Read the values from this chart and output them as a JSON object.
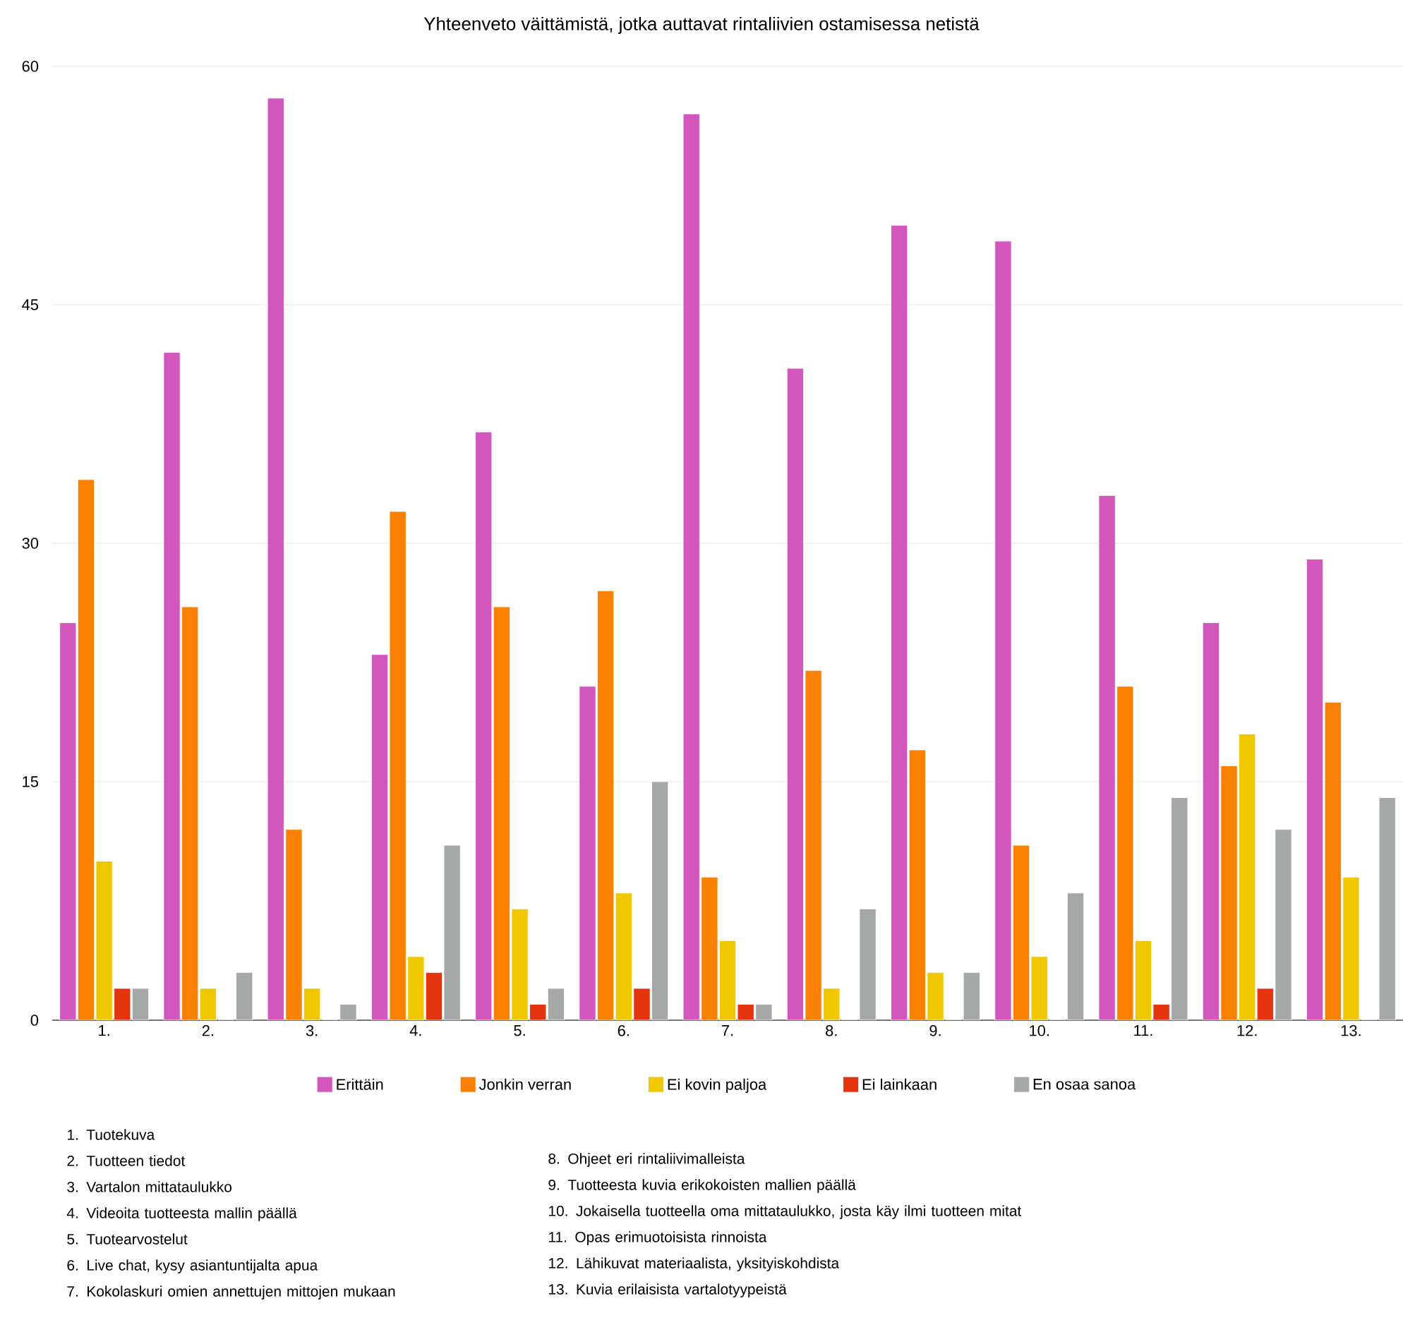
{
  "chart_data": {
    "type": "bar",
    "title": "Yhteenveto väittämistä, jotka auttavat rintaliivien ostamisessa netistä",
    "categories": [
      "1.",
      "2.",
      "3.",
      "4.",
      "5.",
      "6.",
      "7.",
      "8.",
      "9.",
      "10.",
      "11.",
      "12.",
      "13."
    ],
    "series": [
      {
        "name": "Erittäin",
        "color": "#d356bd",
        "values": [
          25,
          42,
          58,
          23,
          37,
          21,
          57,
          41,
          50,
          49,
          33,
          25,
          29
        ]
      },
      {
        "name": "Jonkin verran",
        "color": "#f98000",
        "values": [
          34,
          26,
          12,
          32,
          26,
          27,
          9,
          22,
          17,
          11,
          21,
          16,
          20
        ]
      },
      {
        "name": "Ei kovin paljoa",
        "color": "#f0c800",
        "values": [
          10,
          2,
          2,
          4,
          7,
          8,
          5,
          2,
          3,
          4,
          5,
          18,
          9
        ]
      },
      {
        "name": "Ei lainkaan",
        "color": "#e3340f",
        "values": [
          2,
          0,
          0,
          3,
          1,
          2,
          1,
          0,
          0,
          0,
          1,
          2,
          0
        ]
      },
      {
        "name": "En osaa sanoa",
        "color": "#a4a9a8",
        "values": [
          2,
          3,
          1,
          11,
          2,
          15,
          1,
          7,
          3,
          8,
          14,
          12,
          14
        ]
      }
    ],
    "ylim": [
      0,
      60
    ],
    "yticks": [
      0,
      15,
      30,
      45,
      60
    ],
    "grid": "y",
    "legend": "bottom",
    "annotations": [
      "1. Tuotekuva",
      "2. Tuotteen tiedot",
      "3. Vartalon mittataulukko",
      "4. Videoita tuotteesta mallin päällä",
      "5. Tuotearvostelut",
      "6. Live chat, kysy asiantuntijalta apua",
      "7. Kokolaskuri omien annettujen mittojen mukaan",
      "8. Ohjeet eri rintaliivimalleista",
      "9. Tuotteesta kuvia erikokoisten mallien päällä",
      "10. Jokaisella tuotteella oma mittataulukko, josta käy ilmi tuotteen mitat",
      "11. Opas erimuotoisista rinnoista",
      "12. Lähikuvat materiaalista, yksityiskohdista",
      "13. Kuvia erilaisista vartalotyypeistä"
    ]
  }
}
